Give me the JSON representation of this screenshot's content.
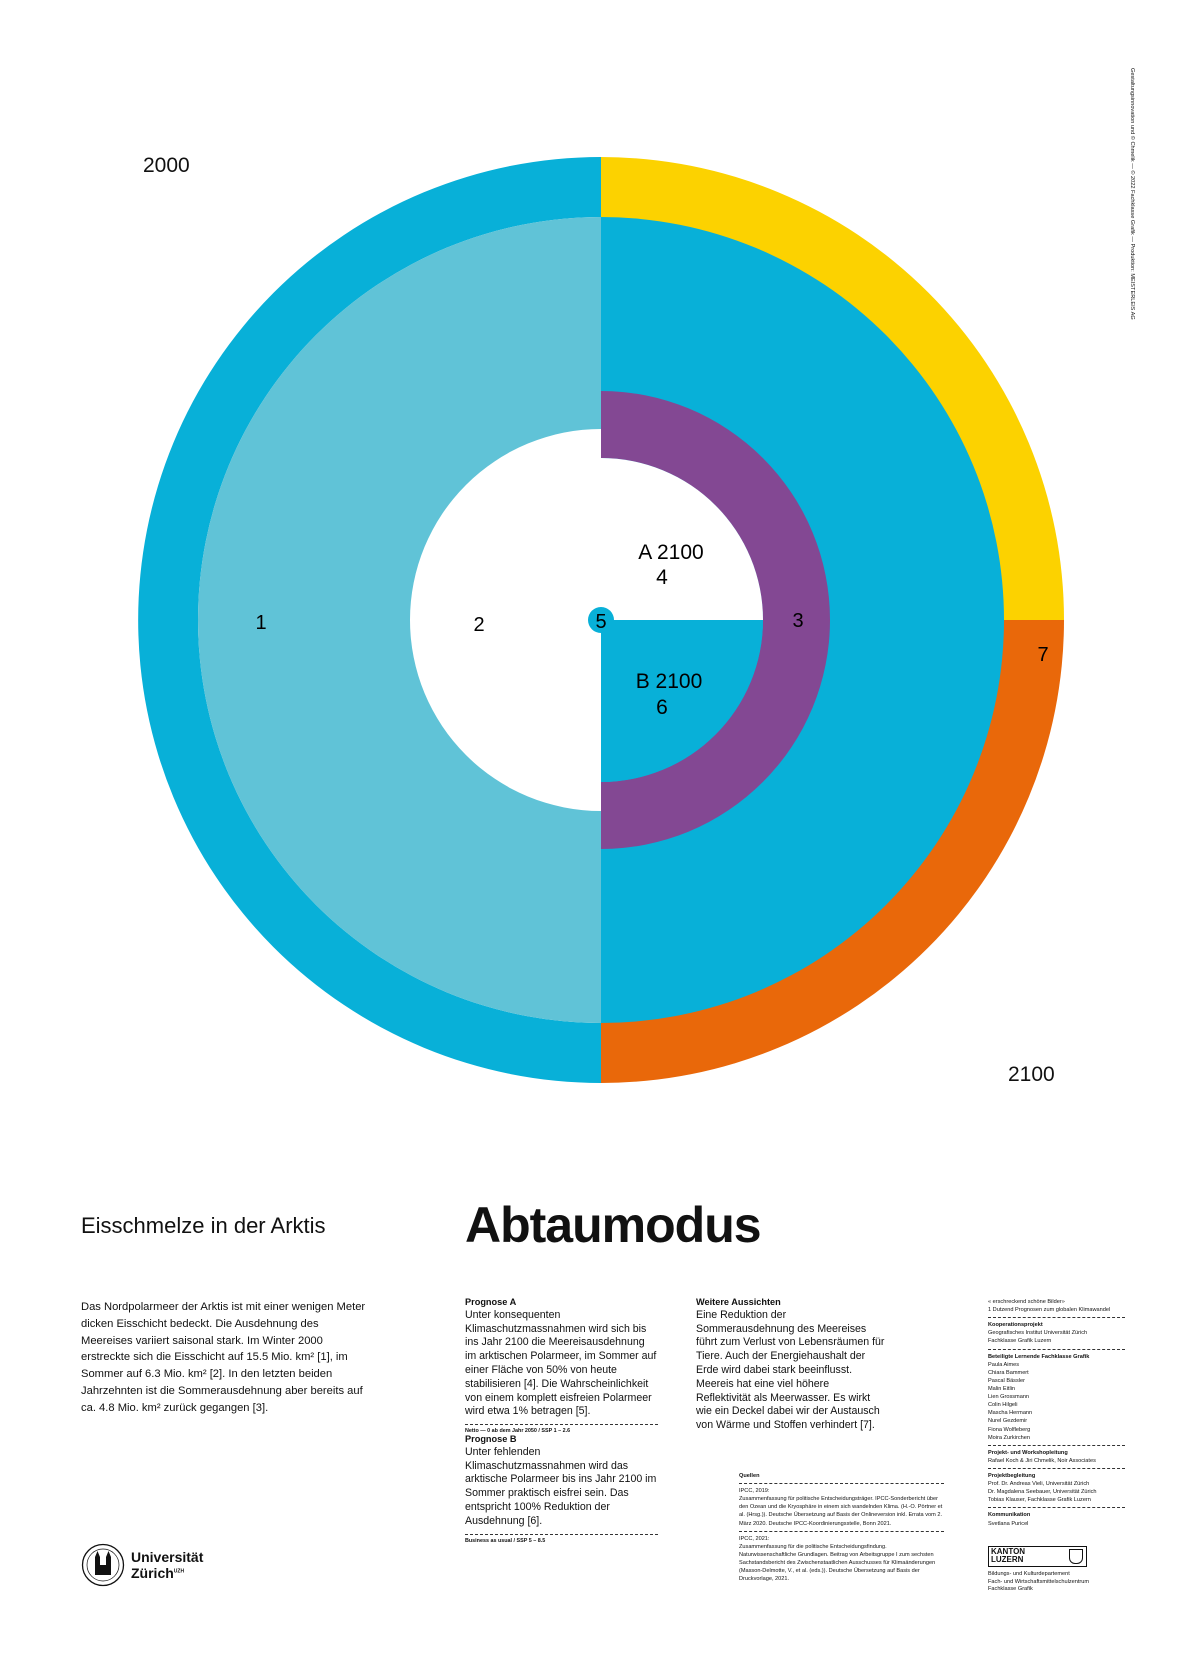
{
  "labels": {
    "year_start": "2000",
    "year_end": "2100",
    "ring_outer_left": "1",
    "ring_inner_left": "2",
    "ring_purple": "3",
    "scenario_a_year": "A 2100",
    "scenario_a_num": "4",
    "center_num": "5",
    "scenario_b_year": "B 2100",
    "scenario_b_num": "6",
    "ring_orange": "7"
  },
  "colors": {
    "cyan": "#08b0d8",
    "light_blue": "#60c3d7",
    "yellow": "#fcd200",
    "orange": "#e9680a",
    "purple": "#834893",
    "background": "#ffffff"
  },
  "vertical_credit": "Gestaltungsinnovation und © Chmelik — © 2022 Fachklasse Grafik — Produktion: MEISTERLEIS AG",
  "subtitle": "Eisschmelze in der Arktis",
  "title": "Abtaumodus",
  "intro": "Das Nordpolarmeer der Arktis ist mit einer wenigen Meter dicken Eisschicht bedeckt. Die Ausdehnung des Meereises variiert saisonal stark. Im Winter 2000 erstreckte sich die Eisschicht auf 15.5 Mio. km² [1], im Sommer auf 6.3 Mio. km² [2]. In den letzten beiden Jahrzehnten ist die Sommerausdehnung aber bereits auf ca. 4.8 Mio. km² zurück gegangen [3].",
  "prognose_a": {
    "heading": "Prognose A",
    "text": "Unter konsequenten Klimaschutzmassnahmen wird sich bis ins Jahr 2100 die Meereisausdehnung im arktischen Polarmeer, im Sommer auf einer Fläche von 50% von heute stabilisieren [4]. Die Wahrscheinlichkeit von einem komplett eisfreien Polarmeer wird etwa 1% betragen [5].",
    "note": "Netto — 0 ab dem Jahr 2050 / SSP 1 – 2.6"
  },
  "prognose_b": {
    "heading": "Prognose B",
    "text": "Unter fehlenden Klimaschutzmassnahmen wird das arktische Polarmeer bis ins Jahr 2100 im Sommer praktisch eisfrei sein. Das entspricht 100% Reduktion der Ausdehnung [6].",
    "note": "Business as usual / SSP 5 – 8.5"
  },
  "aussichten": {
    "heading": "Weitere Aussichten",
    "text": "Eine Reduktion der Sommerausdehnung des Meereises führt zum Verlust von Lebensräumen für Tiere. Auch der Energiehaushalt der Erde wird dabei stark beeinflusst. Meereis hat eine viel höhere Reflektivität als Meerwasser. Es wirkt wie ein Deckel dabei wir der Austausch von Wärme und Stoffen verhindert [7]."
  },
  "quellen": {
    "heading": "Quellen",
    "src1_title": "IPCC, 2019:",
    "src1_text": "Zusammenfassung für politische Entscheidungsträger. IPCC-Sonderbericht über den Ozean und die Kryosphäre in einem sich wandelnden Klima. (H.-O. Pörtner et al. (Hrsg.)). Deutsche Übersetzung auf Basis der Onlineversion inkl. Errata vom 2. März 2020. Deutsche IPCC-Koordinierungsstelle, Bonn 2021.",
    "src2_title": "IPCC, 2021:",
    "src2_text": "Zusammenfassung für die politische Entscheidungsfindung. Naturwissenschaftliche Grundlagen. Beitrag von Arbeitsgruppe I zum sechsten Sachstandsbericht des Zwischenstaatlichen Ausschusses für Klimaänderungen (Masson-Delmotte, V., et al. (eds.)). Deutsche Übersetzung auf Basis der Druckvorlage, 2021."
  },
  "credits": {
    "series_1": "« erschreckend schöne Bilder»",
    "series_2": "1 Dutzend Prognosen zum globalen Klimawandel",
    "koop_title": "Kooperationsprojekt",
    "koop_1": "Geografisches Institut Universität Zürich",
    "koop_2": "Fachklasse Grafik Luzern",
    "lern_title": "Beteiligte Lernende Fachklasse Grafik",
    "lern_names": [
      "Paula Aimes",
      "Chiara Bammert",
      "Pascal Bässler",
      "Malin Eitlin",
      "Lien Grossmann",
      "Colin Hilgeli",
      "Mascha Hermann",
      "Nurel Gezdemir",
      "Fiona Wolfleberg",
      "Moira Zurkirchen"
    ],
    "proj_title": "Projekt- und Workshopleitung",
    "proj_text": "Rafael Koch & Jiri Chmelik, Noir Associates",
    "beg_title": "Projektbegleitung",
    "beg_1": "Prof. Dr. Andreas Vieli, Universität Zürich",
    "beg_2": "Dr. Magdalena Seebauer, Universität Zürich",
    "beg_3": "Tobias Klauser, Fachklasse Grafik Luzern",
    "komm_title": "Kommunikation",
    "komm_text": "Svetlana Puricel"
  },
  "uzh": {
    "line1": "Universität",
    "line2": "Zürich",
    "sup": "UZH"
  },
  "kanton": {
    "line1": "KANTON",
    "line2": "LUZERN",
    "dept_1": "Bildungs- und Kulturdepartement",
    "dept_2": "Fach- und Wirtschaftsmittelschulzentrum",
    "dept_3": "Fachklasse Grafik"
  }
}
